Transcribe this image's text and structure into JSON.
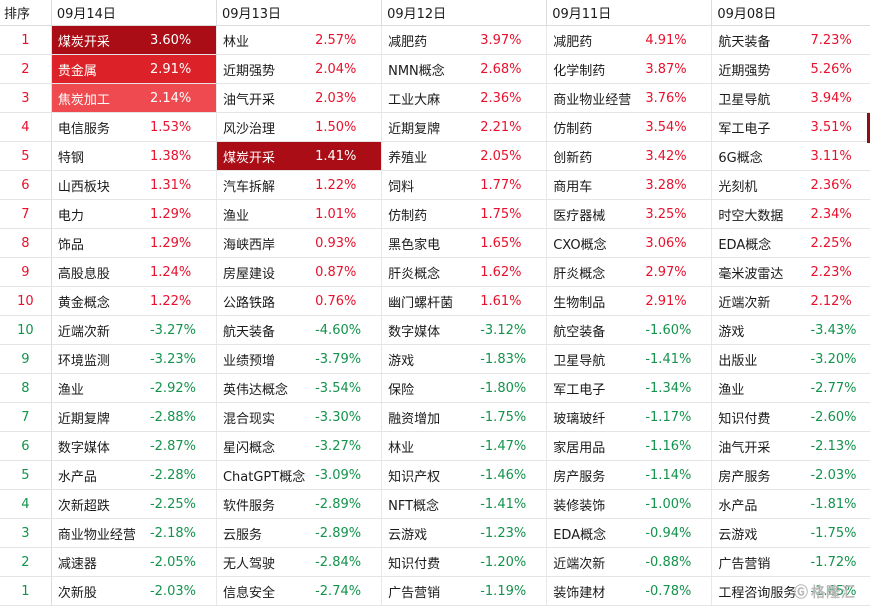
{
  "header": {
    "rank_label": "排序",
    "dates": [
      "09月14日",
      "09月13日",
      "09月12日",
      "09月11日",
      "09月08日"
    ]
  },
  "rows": [
    {
      "rank": "1",
      "dir": "up",
      "cells": [
        [
          "煤炭开采",
          "3.60%"
        ],
        [
          "林业",
          "2.57%"
        ],
        [
          "减肥药",
          "3.97%"
        ],
        [
          "减肥药",
          "4.91%"
        ],
        [
          "航天装备",
          "7.23%"
        ]
      ]
    },
    {
      "rank": "2",
      "dir": "up",
      "cells": [
        [
          "贵金属",
          "2.91%"
        ],
        [
          "近期强势",
          "2.04%"
        ],
        [
          "NMN概念",
          "2.68%"
        ],
        [
          "化学制药",
          "3.87%"
        ],
        [
          "近期强势",
          "5.26%"
        ]
      ]
    },
    {
      "rank": "3",
      "dir": "up",
      "cells": [
        [
          "焦炭加工",
          "2.14%"
        ],
        [
          "油气开采",
          "2.03%"
        ],
        [
          "工业大麻",
          "2.36%"
        ],
        [
          "商业物业经营",
          "3.76%"
        ],
        [
          "卫星导航",
          "3.94%"
        ]
      ]
    },
    {
      "rank": "4",
      "dir": "up",
      "cells": [
        [
          "电信服务",
          "1.53%"
        ],
        [
          "风沙治理",
          "1.50%"
        ],
        [
          "近期复牌",
          "2.21%"
        ],
        [
          "仿制药",
          "3.54%"
        ],
        [
          "军工电子",
          "3.51%"
        ]
      ]
    },
    {
      "rank": "5",
      "dir": "up",
      "cells": [
        [
          "特钢",
          "1.38%"
        ],
        [
          "煤炭开采",
          "1.41%"
        ],
        [
          "养殖业",
          "2.05%"
        ],
        [
          "创新药",
          "3.42%"
        ],
        [
          "6G概念",
          "3.11%"
        ]
      ]
    },
    {
      "rank": "6",
      "dir": "up",
      "cells": [
        [
          "山西板块",
          "1.31%"
        ],
        [
          "汽车拆解",
          "1.22%"
        ],
        [
          "饲料",
          "1.77%"
        ],
        [
          "商用车",
          "3.28%"
        ],
        [
          "光刻机",
          "2.36%"
        ]
      ]
    },
    {
      "rank": "7",
      "dir": "up",
      "cells": [
        [
          "电力",
          "1.29%"
        ],
        [
          "渔业",
          "1.01%"
        ],
        [
          "仿制药",
          "1.75%"
        ],
        [
          "医疗器械",
          "3.25%"
        ],
        [
          "时空大数据",
          "2.34%"
        ]
      ]
    },
    {
      "rank": "8",
      "dir": "up",
      "cells": [
        [
          "饰品",
          "1.29%"
        ],
        [
          "海峡西岸",
          "0.93%"
        ],
        [
          "黑色家电",
          "1.65%"
        ],
        [
          "CXO概念",
          "3.06%"
        ],
        [
          "EDA概念",
          "2.25%"
        ]
      ]
    },
    {
      "rank": "9",
      "dir": "up",
      "cells": [
        [
          "高股息股",
          "1.24%"
        ],
        [
          "房屋建设",
          "0.87%"
        ],
        [
          "肝炎概念",
          "1.62%"
        ],
        [
          "肝炎概念",
          "2.97%"
        ],
        [
          "毫米波雷达",
          "2.23%"
        ]
      ]
    },
    {
      "rank": "10",
      "dir": "up",
      "cells": [
        [
          "黄金概念",
          "1.22%"
        ],
        [
          "公路铁路",
          "0.76%"
        ],
        [
          "幽门螺杆菌",
          "1.61%"
        ],
        [
          "生物制品",
          "2.91%"
        ],
        [
          "近端次新",
          "2.12%"
        ]
      ]
    },
    {
      "rank": "10",
      "dir": "down",
      "cells": [
        [
          "近端次新",
          "-3.27%"
        ],
        [
          "航天装备",
          "-4.60%"
        ],
        [
          "数字媒体",
          "-3.12%"
        ],
        [
          "航空装备",
          "-1.60%"
        ],
        [
          "游戏",
          "-3.43%"
        ]
      ]
    },
    {
      "rank": "9",
      "dir": "down",
      "cells": [
        [
          "环境监测",
          "-3.23%"
        ],
        [
          "业绩预增",
          "-3.79%"
        ],
        [
          "游戏",
          "-1.83%"
        ],
        [
          "卫星导航",
          "-1.41%"
        ],
        [
          "出版业",
          "-3.20%"
        ]
      ]
    },
    {
      "rank": "8",
      "dir": "down",
      "cells": [
        [
          "渔业",
          "-2.92%"
        ],
        [
          "英伟达概念",
          "-3.54%"
        ],
        [
          "保险",
          "-1.80%"
        ],
        [
          "军工电子",
          "-1.34%"
        ],
        [
          "渔业",
          "-2.77%"
        ]
      ]
    },
    {
      "rank": "7",
      "dir": "down",
      "cells": [
        [
          "近期复牌",
          "-2.88%"
        ],
        [
          "混合现实",
          "-3.30%"
        ],
        [
          "融资增加",
          "-1.75%"
        ],
        [
          "玻璃玻纤",
          "-1.17%"
        ],
        [
          "知识付费",
          "-2.60%"
        ]
      ]
    },
    {
      "rank": "6",
      "dir": "down",
      "cells": [
        [
          "数字媒体",
          "-2.87%"
        ],
        [
          "星闪概念",
          "-3.27%"
        ],
        [
          "林业",
          "-1.47%"
        ],
        [
          "家居用品",
          "-1.16%"
        ],
        [
          "油气开采",
          "-2.13%"
        ]
      ]
    },
    {
      "rank": "5",
      "dir": "down",
      "cells": [
        [
          "水产品",
          "-2.28%"
        ],
        [
          "ChatGPT概念",
          "-3.09%"
        ],
        [
          "知识产权",
          "-1.46%"
        ],
        [
          "房产服务",
          "-1.14%"
        ],
        [
          "房产服务",
          "-2.03%"
        ]
      ]
    },
    {
      "rank": "4",
      "dir": "down",
      "cells": [
        [
          "次新超跌",
          "-2.25%"
        ],
        [
          "软件服务",
          "-2.89%"
        ],
        [
          "NFT概念",
          "-1.41%"
        ],
        [
          "装修装饰",
          "-1.00%"
        ],
        [
          "水产品",
          "-1.81%"
        ]
      ]
    },
    {
      "rank": "3",
      "dir": "down",
      "cells": [
        [
          "商业物业经营",
          "-2.18%"
        ],
        [
          "云服务",
          "-2.89%"
        ],
        [
          "云游戏",
          "-1.23%"
        ],
        [
          "EDA概念",
          "-0.94%"
        ],
        [
          "云游戏",
          "-1.75%"
        ]
      ]
    },
    {
      "rank": "2",
      "dir": "down",
      "cells": [
        [
          "减速器",
          "-2.05%"
        ],
        [
          "无人驾驶",
          "-2.84%"
        ],
        [
          "知识付费",
          "-1.20%"
        ],
        [
          "近端次新",
          "-0.88%"
        ],
        [
          "广告营销",
          "-1.72%"
        ]
      ]
    },
    {
      "rank": "1",
      "dir": "down",
      "cells": [
        [
          "次新股",
          "-2.03%"
        ],
        [
          "信息安全",
          "-2.74%"
        ],
        [
          "广告营销",
          "-1.19%"
        ],
        [
          "装饰建材",
          "-0.78%"
        ],
        [
          "工程咨询服务",
          "-1.65%"
        ]
      ]
    }
  ],
  "highlights": [
    {
      "row": 0,
      "col": 0,
      "level": "h1"
    },
    {
      "row": 1,
      "col": 0,
      "level": "h2"
    },
    {
      "row": 2,
      "col": 0,
      "level": "h3"
    },
    {
      "row": 4,
      "col": 1,
      "level": "h1"
    }
  ],
  "colors": {
    "up": "#e8112d",
    "down": "#13934c",
    "heat1": "#aa0d16",
    "heat2": "#dc2228",
    "heat3": "#ee4a4f"
  },
  "watermark": {
    "text": "格隆汇"
  }
}
